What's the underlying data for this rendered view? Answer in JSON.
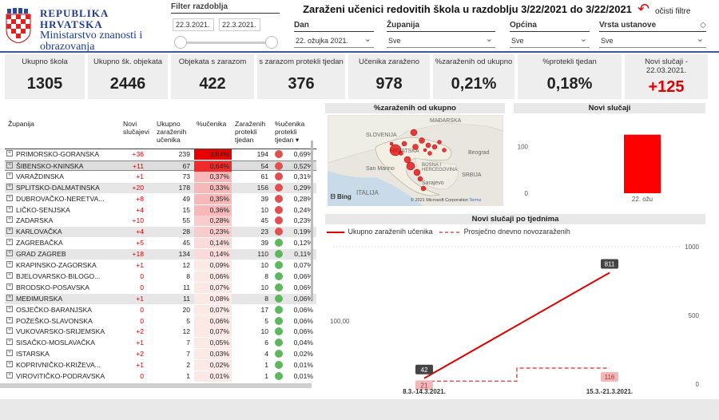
{
  "header": {
    "logo_line1": "REPUBLIKA HRVATSKA",
    "logo_line2": "Ministarstvo znanosti i",
    "logo_line3": "obrazovanja",
    "filter_label": "Filter razdoblja",
    "date_from": "22.3.2021.",
    "date_to": "22.3.2021.",
    "title": "Zaraženi učenici redovitih škola u razdoblju 3/22/2021 do 3/22/2021",
    "clear_label": "očisti filtre",
    "slicers": [
      {
        "label": "Dan",
        "value": "22. ožujka 2021."
      },
      {
        "label": "Županija",
        "value": "Sve"
      },
      {
        "label": "Općina",
        "value": "Sve"
      },
      {
        "label": "Vrsta ustanove",
        "value": "Sve"
      }
    ]
  },
  "kpis": [
    {
      "label": "Ukupno škola",
      "value": "1305"
    },
    {
      "label": "Ukupno šk. objekata",
      "value": "2446"
    },
    {
      "label": "Objekata s zarazom",
      "value": "422"
    },
    {
      "label": "s zarazom protekli tjedan",
      "value": "376"
    },
    {
      "label": "Učenika zaraženo",
      "value": "978"
    },
    {
      "label": "%zaraženih od ukupno",
      "value": "0,21%"
    },
    {
      "label": "%protekli tjedan",
      "value": "0,18%"
    },
    {
      "label": "Novi slučaji - 22.03.2021.",
      "value": "+125"
    }
  ],
  "table": {
    "headers": [
      "Županija",
      "Novi slučajevi",
      "Ukupno zaraženih učenika",
      "%učenika",
      "Zaraženih protekli tjedan",
      "%učenika protekli tjedan"
    ],
    "rows": [
      {
        "name": "PRIMORSKO-GORANSKA",
        "new": "+36",
        "total": "239",
        "pct": "0,84%",
        "prot": "194",
        "pp": "0,69%"
      },
      {
        "name": "ŠIBENSKO-KNINSKA",
        "new": "+11",
        "total": "67",
        "pct": "0,64%",
        "prot": "54",
        "pp": "0,52%"
      },
      {
        "name": "VARAŽDINSKA",
        "new": "+1",
        "total": "73",
        "pct": "0,37%",
        "prot": "61",
        "pp": "0,31%"
      },
      {
        "name": "SPLITSKO-DALMATINSKA",
        "new": "+20",
        "total": "178",
        "pct": "0,33%",
        "prot": "156",
        "pp": "0,29%"
      },
      {
        "name": "DUBROVAČKO-NERETVA...",
        "new": "+8",
        "total": "49",
        "pct": "0,35%",
        "prot": "39",
        "pp": "0,28%"
      },
      {
        "name": "LIČKO-SENJSKA",
        "new": "+4",
        "total": "15",
        "pct": "0,36%",
        "prot": "10",
        "pp": "0,24%"
      },
      {
        "name": "ZADARSKA",
        "new": "+10",
        "total": "55",
        "pct": "0,28%",
        "prot": "45",
        "pp": "0,23%"
      },
      {
        "name": "KARLOVAČKA",
        "new": "+4",
        "total": "28",
        "pct": "0,23%",
        "prot": "23",
        "pp": "0,19%"
      },
      {
        "name": "ZAGREBAČKA",
        "new": "+5",
        "total": "45",
        "pct": "0,14%",
        "prot": "39",
        "pp": "0,12%"
      },
      {
        "name": "GRAD ZAGREB",
        "new": "+18",
        "total": "134",
        "pct": "0,14%",
        "prot": "110",
        "pp": "0,11%"
      },
      {
        "name": "KRAPINSKO-ZAGORSKA",
        "new": "+1",
        "total": "12",
        "pct": "0,09%",
        "prot": "10",
        "pp": "0,07%"
      },
      {
        "name": "BJELOVARSKO-BILOGO...",
        "new": "0",
        "total": "8",
        "pct": "0,06%",
        "prot": "8",
        "pp": "0,06%"
      },
      {
        "name": "BRODSKO-POSAVSKA",
        "new": "0",
        "total": "11",
        "pct": "0,07%",
        "prot": "10",
        "pp": "0,06%"
      },
      {
        "name": "MEĐIMURSKA",
        "new": "+1",
        "total": "11",
        "pct": "0,08%",
        "prot": "8",
        "pp": "0,06%"
      },
      {
        "name": "OSJEČKO-BARANJSKA",
        "new": "0",
        "total": "20",
        "pct": "0,07%",
        "prot": "17",
        "pp": "0,06%"
      },
      {
        "name": "POŽEŠKO-SLAVONSKA",
        "new": "0",
        "total": "5",
        "pct": "0,06%",
        "prot": "5",
        "pp": "0,06%"
      },
      {
        "name": "VUKOVARSKO-SRIJEMSKA",
        "new": "+2",
        "total": "12",
        "pct": "0,07%",
        "prot": "10",
        "pp": "0,06%"
      },
      {
        "name": "SISAČKO-MOSLAVAČKA",
        "new": "+1",
        "total": "7",
        "pct": "0,05%",
        "prot": "6",
        "pp": "0,04%"
      },
      {
        "name": "ISTARSKA",
        "new": "+2",
        "total": "7",
        "pct": "0,03%",
        "prot": "4",
        "pp": "0,02%"
      },
      {
        "name": "KOPRIVNIČKO-KRIŽEVA...",
        "new": "+1",
        "total": "2",
        "pct": "0,02%",
        "prot": "1",
        "pp": "0,01%"
      },
      {
        "name": "VIROVITIČKO-PODRAVSKA",
        "new": "0",
        "total": "1",
        "pct": "0,01%",
        "prot": "1",
        "pp": "0,01%"
      }
    ]
  },
  "map": {
    "title": "%zaraženih od ukupno",
    "labels": [
      "MAĐARSKA",
      "SLOVENIJA",
      "HRVATSKA",
      "BOSNA I HERCEGOVINA",
      "San Marino",
      "ITALIJA",
      "Beograd",
      "SRBIJA",
      "Sarajevo"
    ],
    "bing": "Bing",
    "copyright": "© 2021 Microsoft Corporation",
    "terms": "Terms"
  },
  "novi_slucaji": {
    "title": "Novi slučaji",
    "y_ticks": [
      "100",
      "0"
    ],
    "x_label": "22. ožu",
    "value": 125
  },
  "weekly": {
    "title": "Novi slučaji po tjednima",
    "legend_solid": "Ukupno zaraženih učenika",
    "legend_dashed": "Prosječno dnevno novozaraženih",
    "left_tick": "100,00",
    "right_ticks": [
      "1000",
      "500",
      "0"
    ]
  },
  "chart_data": [
    {
      "type": "bar",
      "title": "Novi slučaji",
      "categories": [
        "22. ožu"
      ],
      "values": [
        125
      ],
      "ylim": [
        0,
        150
      ]
    },
    {
      "type": "line",
      "title": "Novi slučaji po tjednima",
      "categories": [
        "8.3.-14.3.2021.",
        "15.3.-21.3.2021."
      ],
      "series": [
        {
          "name": "Ukupno zaraženih učenika",
          "values": [
            42,
            811
          ],
          "color": "#e00000"
        },
        {
          "name": "Prosječno dnevno novozaraženih",
          "values": [
            21,
            116
          ],
          "color": "#d9534f",
          "style": "dashed"
        }
      ],
      "ylim_right": [
        0,
        1000
      ]
    }
  ],
  "colors": {
    "accent": "#e00000",
    "header_rule": "#3a5a9a",
    "green": "#5cb85c"
  }
}
